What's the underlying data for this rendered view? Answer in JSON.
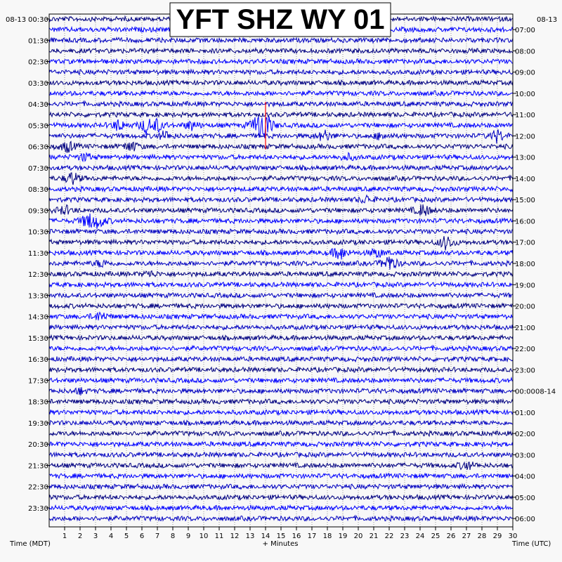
{
  "chart_data": {
    "type": "line",
    "title": "YFT SHZ WY 01",
    "xlabel": "+ Minutes",
    "left_axis_label": "Time (MDT)",
    "right_axis_label": "Time (UTC)",
    "left_date": "08-13",
    "right_date": "08-13",
    "right_date_change": "08-14",
    "x_range": [
      0,
      30
    ],
    "x_ticks": [
      "1",
      "2",
      "3",
      "4",
      "5",
      "6",
      "7",
      "8",
      "9",
      "10",
      "11",
      "12",
      "13",
      "14",
      "15",
      "16",
      "17",
      "18",
      "19",
      "20",
      "21",
      "22",
      "23",
      "24",
      "25",
      "26",
      "27",
      "28",
      "29",
      "30"
    ],
    "rows_per_hour": 2,
    "row_count": 48,
    "left_hour_labels": [
      "00:30",
      "01:30",
      "02:30",
      "03:30",
      "04:30",
      "05:30",
      "06:30",
      "07:30",
      "08:30",
      "09:30",
      "10:30",
      "11:30",
      "12:30",
      "13:30",
      "14:30",
      "15:30",
      "16:30",
      "17:30",
      "18:30",
      "19:30",
      "20:30",
      "21:30",
      "22:30",
      "23:30"
    ],
    "right_hour_labels": [
      "07:00",
      "08:00",
      "09:00",
      "10:00",
      "11:00",
      "12:00",
      "13:00",
      "14:00",
      "15:00",
      "16:00",
      "17:00",
      "18:00",
      "19:00",
      "20:00",
      "21:00",
      "22:00",
      "23:00",
      "00:00",
      "01:00",
      "02:00",
      "03:00",
      "04:00",
      "05:00",
      "06:00"
    ],
    "trace_colors": [
      "#000080",
      "#0000ff",
      "#0000c0"
    ],
    "grid": true,
    "events": [
      {
        "row": 10,
        "minute": 4.5,
        "amp": 0.6
      },
      {
        "row": 10,
        "minute": 6.3,
        "amp": 0.8
      },
      {
        "row": 10,
        "minute": 7.0,
        "amp": 0.6
      },
      {
        "row": 10,
        "minute": 9.2,
        "amp": 0.5
      },
      {
        "row": 10,
        "minute": 13.5,
        "amp": 1.1
      },
      {
        "row": 10,
        "minute": 14.0,
        "amp": 1.3
      },
      {
        "row": 11,
        "minute": 7.5,
        "amp": 0.5
      },
      {
        "row": 11,
        "minute": 17.8,
        "amp": 0.6
      },
      {
        "row": 11,
        "minute": 21.5,
        "amp": 0.4
      },
      {
        "row": 11,
        "minute": 29.0,
        "amp": 0.7
      },
      {
        "row": 12,
        "minute": 1.2,
        "amp": 0.6
      },
      {
        "row": 12,
        "minute": 5.3,
        "amp": 0.6
      },
      {
        "row": 13,
        "minute": 2.3,
        "amp": 0.4
      },
      {
        "row": 13,
        "minute": 19.3,
        "amp": 0.3
      },
      {
        "row": 15,
        "minute": 1.5,
        "amp": 0.7
      },
      {
        "row": 17,
        "minute": 20.5,
        "amp": 0.4
      },
      {
        "row": 18,
        "minute": 1.0,
        "amp": 0.5
      },
      {
        "row": 18,
        "minute": 24.2,
        "amp": 0.7
      },
      {
        "row": 19,
        "minute": 2.5,
        "amp": 0.8
      },
      {
        "row": 19,
        "minute": 3.2,
        "amp": 0.7
      },
      {
        "row": 21,
        "minute": 25.7,
        "amp": 0.8
      },
      {
        "row": 22,
        "minute": 18.8,
        "amp": 0.8
      },
      {
        "row": 22,
        "minute": 21.2,
        "amp": 0.5
      },
      {
        "row": 23,
        "minute": 22.0,
        "amp": 0.9
      },
      {
        "row": 23,
        "minute": 3.4,
        "amp": 0.4
      },
      {
        "row": 24,
        "minute": 6.5,
        "amp": 0.3
      },
      {
        "row": 28,
        "minute": 3.3,
        "amp": 0.5
      },
      {
        "row": 35,
        "minute": 2.0,
        "amp": 0.3
      },
      {
        "row": 42,
        "minute": 27.0,
        "amp": 0.5
      }
    ],
    "marker": {
      "row_start": 8,
      "row_end": 12,
      "minute": 14.0,
      "color": "#ff0000"
    }
  }
}
